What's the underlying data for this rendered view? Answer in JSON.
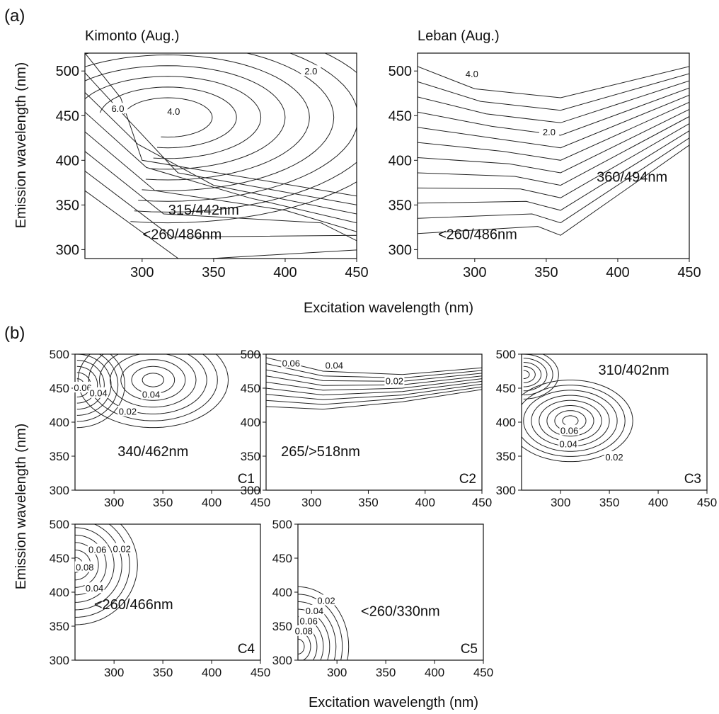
{
  "panel_a": {
    "label": "(a)",
    "ylabel": "Emission wavelength (nm)",
    "xlabel": "Excitation wavelength (nm)"
  },
  "panel_b": {
    "label": "(b)",
    "ylabel": "Emission wavelength (nm)",
    "xlabel": "Excitation wavelength (nm)"
  },
  "chart_data": [
    {
      "type": "contour",
      "id": "kimonto",
      "title": "Kimonto (Aug.)",
      "xlim": [
        260,
        450
      ],
      "ylim": [
        290,
        520
      ],
      "xticks": [
        300,
        350,
        400,
        450
      ],
      "yticks": [
        300,
        350,
        400,
        450,
        500
      ],
      "contour_labels": [
        {
          "text": "6.0",
          "x": 283,
          "y": 458
        },
        {
          "text": "4.0",
          "x": 322,
          "y": 455
        },
        {
          "text": "2.0",
          "x": 418,
          "y": 500
        }
      ],
      "peaks": [
        {
          "text": "315/442nm",
          "x": 343,
          "y": 339
        },
        {
          "text": "<260/486nm",
          "x": 328,
          "y": 312
        }
      ]
    },
    {
      "type": "contour",
      "id": "leban",
      "title": "Leban (Aug.)",
      "xlim": [
        260,
        450
      ],
      "ylim": [
        290,
        520
      ],
      "xticks": [
        300,
        350,
        400,
        450
      ],
      "yticks": [
        300,
        350,
        400,
        450,
        500
      ],
      "contour_labels": [
        {
          "text": "4.0",
          "x": 298,
          "y": 497
        },
        {
          "text": "2.0",
          "x": 352,
          "y": 432
        }
      ],
      "peaks": [
        {
          "text": "360/494nm",
          "x": 410,
          "y": 376
        },
        {
          "text": "<260/486nm",
          "x": 302,
          "y": 312
        }
      ]
    },
    {
      "type": "contour",
      "id": "c1",
      "title": "",
      "xlim": [
        260,
        450
      ],
      "ylim": [
        300,
        500
      ],
      "xticks": [
        300,
        350,
        400,
        450
      ],
      "yticks": [
        300,
        350,
        400,
        450,
        500
      ],
      "corner_label": "C1",
      "contour_labels": [
        {
          "text": "0.06",
          "x": 268,
          "y": 451
        },
        {
          "text": "0.04",
          "x": 284,
          "y": 443
        },
        {
          "text": "0.04",
          "x": 338,
          "y": 441
        },
        {
          "text": "0.02",
          "x": 314,
          "y": 416
        }
      ],
      "peaks": [
        {
          "text": "340/462nm",
          "x": 340,
          "y": 350
        }
      ]
    },
    {
      "type": "contour",
      "id": "c2",
      "title": "",
      "xlim": [
        260,
        450
      ],
      "ylim": [
        300,
        500
      ],
      "xticks": [
        300,
        350,
        400,
        450
      ],
      "yticks": [
        300,
        350,
        400,
        450,
        500
      ],
      "corner_label": "C2",
      "contour_labels": [
        {
          "text": "0.06",
          "x": 282,
          "y": 487
        },
        {
          "text": "0.04",
          "x": 320,
          "y": 484
        },
        {
          "text": "0.02",
          "x": 373,
          "y": 461
        }
      ],
      "peaks": [
        {
          "text": "265/>518nm",
          "x": 308,
          "y": 350
        }
      ]
    },
    {
      "type": "contour",
      "id": "c3",
      "title": "",
      "xlim": [
        260,
        450
      ],
      "ylim": [
        300,
        500
      ],
      "xticks": [
        300,
        350,
        400,
        450
      ],
      "yticks": [
        300,
        350,
        400,
        450,
        500
      ],
      "corner_label": "C3",
      "contour_labels": [
        {
          "text": "0.06",
          "x": 309,
          "y": 388
        },
        {
          "text": "0.04",
          "x": 308,
          "y": 368
        },
        {
          "text": "0.02",
          "x": 355,
          "y": 349
        }
      ],
      "peaks": [
        {
          "text": "310/402nm",
          "x": 375,
          "y": 470
        }
      ]
    },
    {
      "type": "contour",
      "id": "c4",
      "title": "",
      "xlim": [
        260,
        450
      ],
      "ylim": [
        300,
        500
      ],
      "xticks": [
        300,
        350,
        400,
        450
      ],
      "yticks": [
        300,
        350,
        400,
        450,
        500
      ],
      "corner_label": "C4",
      "contour_labels": [
        {
          "text": "0.08",
          "x": 270,
          "y": 437
        },
        {
          "text": "0.06",
          "x": 283,
          "y": 463
        },
        {
          "text": "0.04",
          "x": 280,
          "y": 406
        },
        {
          "text": "0.02",
          "x": 308,
          "y": 464
        }
      ],
      "peaks": [
        {
          "text": "<260/466nm",
          "x": 320,
          "y": 375
        }
      ]
    },
    {
      "type": "contour",
      "id": "c5",
      "title": "",
      "xlim": [
        260,
        450
      ],
      "ylim": [
        300,
        500
      ],
      "xticks": [
        300,
        350,
        400,
        450
      ],
      "yticks": [
        300,
        350,
        400,
        450,
        500
      ],
      "corner_label": "C5",
      "contour_labels": [
        {
          "text": "0.02",
          "x": 289,
          "y": 388
        },
        {
          "text": "0.04",
          "x": 277,
          "y": 373
        },
        {
          "text": "0.06",
          "x": 271,
          "y": 358
        },
        {
          "text": "0.08",
          "x": 266,
          "y": 343
        }
      ],
      "peaks": [
        {
          "text": "<260/330nm",
          "x": 365,
          "y": 365
        }
      ]
    }
  ]
}
